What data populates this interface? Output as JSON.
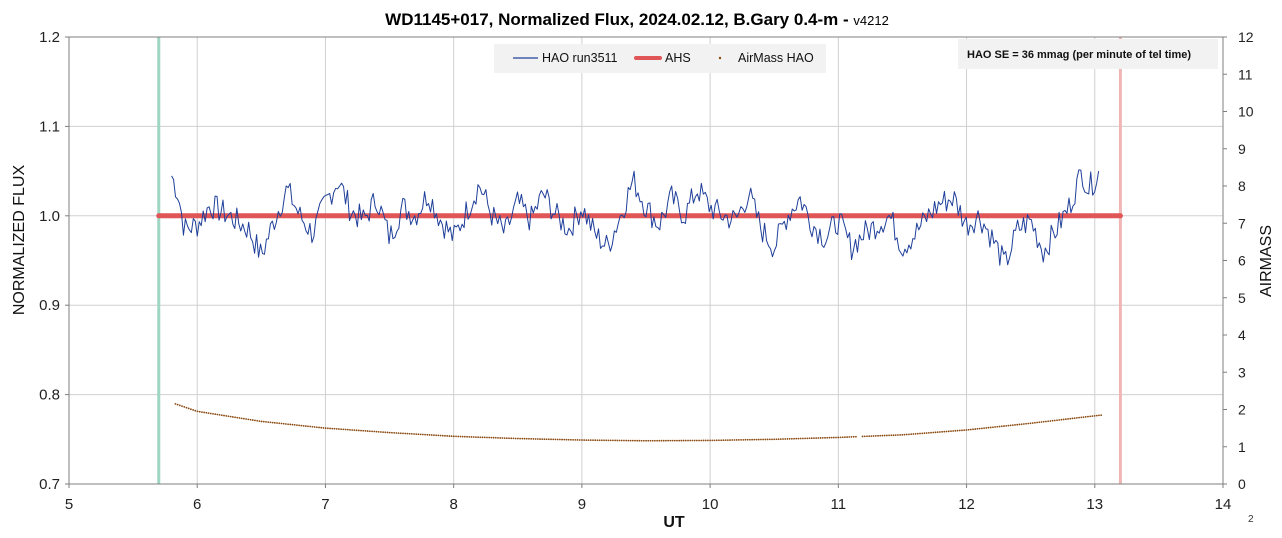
{
  "chart_data": {
    "type": "line",
    "title": "WD1145+017, Normalized Flux, 2024.02.12, B.Gary 0.4-m - ",
    "title_version": "v4212",
    "xlabel": "UT",
    "ylabel": "NORMALIZED FLUX",
    "y2label": "AIRMASS",
    "xlim": [
      5,
      14
    ],
    "ylim": [
      0.7,
      1.2
    ],
    "y2lim": [
      0,
      12
    ],
    "x_ticks": [
      "5",
      "6",
      "7",
      "8",
      "9",
      "10",
      "11",
      "12",
      "13",
      "14"
    ],
    "y_ticks": [
      "0.7",
      "0.8",
      "0.9",
      "1.0",
      "1.1",
      "1.2"
    ],
    "y2_ticks": [
      "0",
      "1",
      "2",
      "3",
      "4",
      "5",
      "6",
      "7",
      "8",
      "9",
      "10",
      "11",
      "12"
    ],
    "grid": true,
    "legend_position": "top-center",
    "annotation": "HAO SE = 36 mmag (per minute of tel time)",
    "page_number": "2",
    "colors": {
      "flux": "#1f3f9a",
      "ahs": "#e05555",
      "airmass": "#8a4a10",
      "start_line": "#9fd6c2",
      "end_line": "#f0b6b6",
      "grid": "#d0d0d0"
    },
    "vertical_markers": [
      {
        "x": 5.7,
        "color": "#9fd6c2"
      },
      {
        "x": 13.2,
        "color": "#f0b6b6"
      }
    ],
    "series": [
      {
        "name": "HAO run3511",
        "axis": "left",
        "style": "line",
        "x_start": 5.8,
        "x_end": 13.03,
        "anchors": [
          [
            5.8,
            1.045
          ],
          [
            5.85,
            1.025
          ],
          [
            5.9,
            0.985
          ],
          [
            6.0,
            0.99
          ],
          [
            6.1,
            1.012
          ],
          [
            6.25,
            1.0
          ],
          [
            6.4,
            0.985
          ],
          [
            6.5,
            0.955
          ],
          [
            6.6,
            0.995
          ],
          [
            6.7,
            1.03
          ],
          [
            6.8,
            1.0
          ],
          [
            6.9,
            0.98
          ],
          [
            7.0,
            1.015
          ],
          [
            7.1,
            1.04
          ],
          [
            7.2,
            1.005
          ],
          [
            7.3,
            0.995
          ],
          [
            7.4,
            1.02
          ],
          [
            7.5,
            0.975
          ],
          [
            7.6,
            1.01
          ],
          [
            7.7,
            1.0
          ],
          [
            7.8,
            1.025
          ],
          [
            7.9,
            0.995
          ],
          [
            8.0,
            0.975
          ],
          [
            8.1,
            1.005
          ],
          [
            8.2,
            1.035
          ],
          [
            8.3,
            1.0
          ],
          [
            8.4,
            0.98
          ],
          [
            8.5,
            1.015
          ],
          [
            8.6,
            0.995
          ],
          [
            8.7,
            1.025
          ],
          [
            8.8,
            1.0
          ],
          [
            8.9,
            0.985
          ],
          [
            9.0,
            1.01
          ],
          [
            9.1,
            0.98
          ],
          [
            9.2,
            0.965
          ],
          [
            9.3,
            1.0
          ],
          [
            9.4,
            1.04
          ],
          [
            9.5,
            1.01
          ],
          [
            9.6,
            0.99
          ],
          [
            9.7,
            1.02
          ],
          [
            9.8,
            1.0
          ],
          [
            9.9,
            1.03
          ],
          [
            10.0,
            1.01
          ],
          [
            10.1,
            1.0
          ],
          [
            10.2,
            0.995
          ],
          [
            10.3,
            1.025
          ],
          [
            10.4,
            0.985
          ],
          [
            10.5,
            0.965
          ],
          [
            10.6,
            1.0
          ],
          [
            10.7,
            1.02
          ],
          [
            10.8,
            0.99
          ],
          [
            10.9,
            0.975
          ],
          [
            11.0,
            0.995
          ],
          [
            11.1,
            0.965
          ],
          [
            11.2,
            0.98
          ],
          [
            11.3,
            0.99
          ],
          [
            11.4,
            1.0
          ],
          [
            11.5,
            0.965
          ],
          [
            11.6,
            0.98
          ],
          [
            11.7,
            1.0
          ],
          [
            11.8,
            1.015
          ],
          [
            11.9,
            1.02
          ],
          [
            12.0,
            0.99
          ],
          [
            12.1,
            1.0
          ],
          [
            12.2,
            0.975
          ],
          [
            12.3,
            0.945
          ],
          [
            12.4,
            0.985
          ],
          [
            12.5,
            0.995
          ],
          [
            12.6,
            0.96
          ],
          [
            12.7,
            0.985
          ],
          [
            12.8,
            1.01
          ],
          [
            12.9,
            1.05
          ],
          [
            12.95,
            1.03
          ],
          [
            13.03,
            1.048
          ]
        ]
      },
      {
        "name": "AHS",
        "axis": "left",
        "style": "thick-line",
        "x": [
          5.7,
          13.2
        ],
        "y": [
          1.0,
          1.0
        ]
      },
      {
        "name": "AirMass HAO",
        "axis": "right",
        "style": "dots",
        "x_start": 5.83,
        "x_end": 13.05,
        "anchors": [
          [
            5.83,
            2.15
          ],
          [
            6.0,
            1.95
          ],
          [
            6.5,
            1.68
          ],
          [
            7.0,
            1.5
          ],
          [
            7.5,
            1.38
          ],
          [
            8.0,
            1.28
          ],
          [
            8.5,
            1.22
          ],
          [
            9.0,
            1.18
          ],
          [
            9.5,
            1.16
          ],
          [
            10.0,
            1.17
          ],
          [
            10.5,
            1.2
          ],
          [
            11.0,
            1.25
          ],
          [
            11.5,
            1.32
          ],
          [
            12.0,
            1.45
          ],
          [
            12.5,
            1.63
          ],
          [
            13.05,
            1.85
          ]
        ]
      }
    ]
  }
}
